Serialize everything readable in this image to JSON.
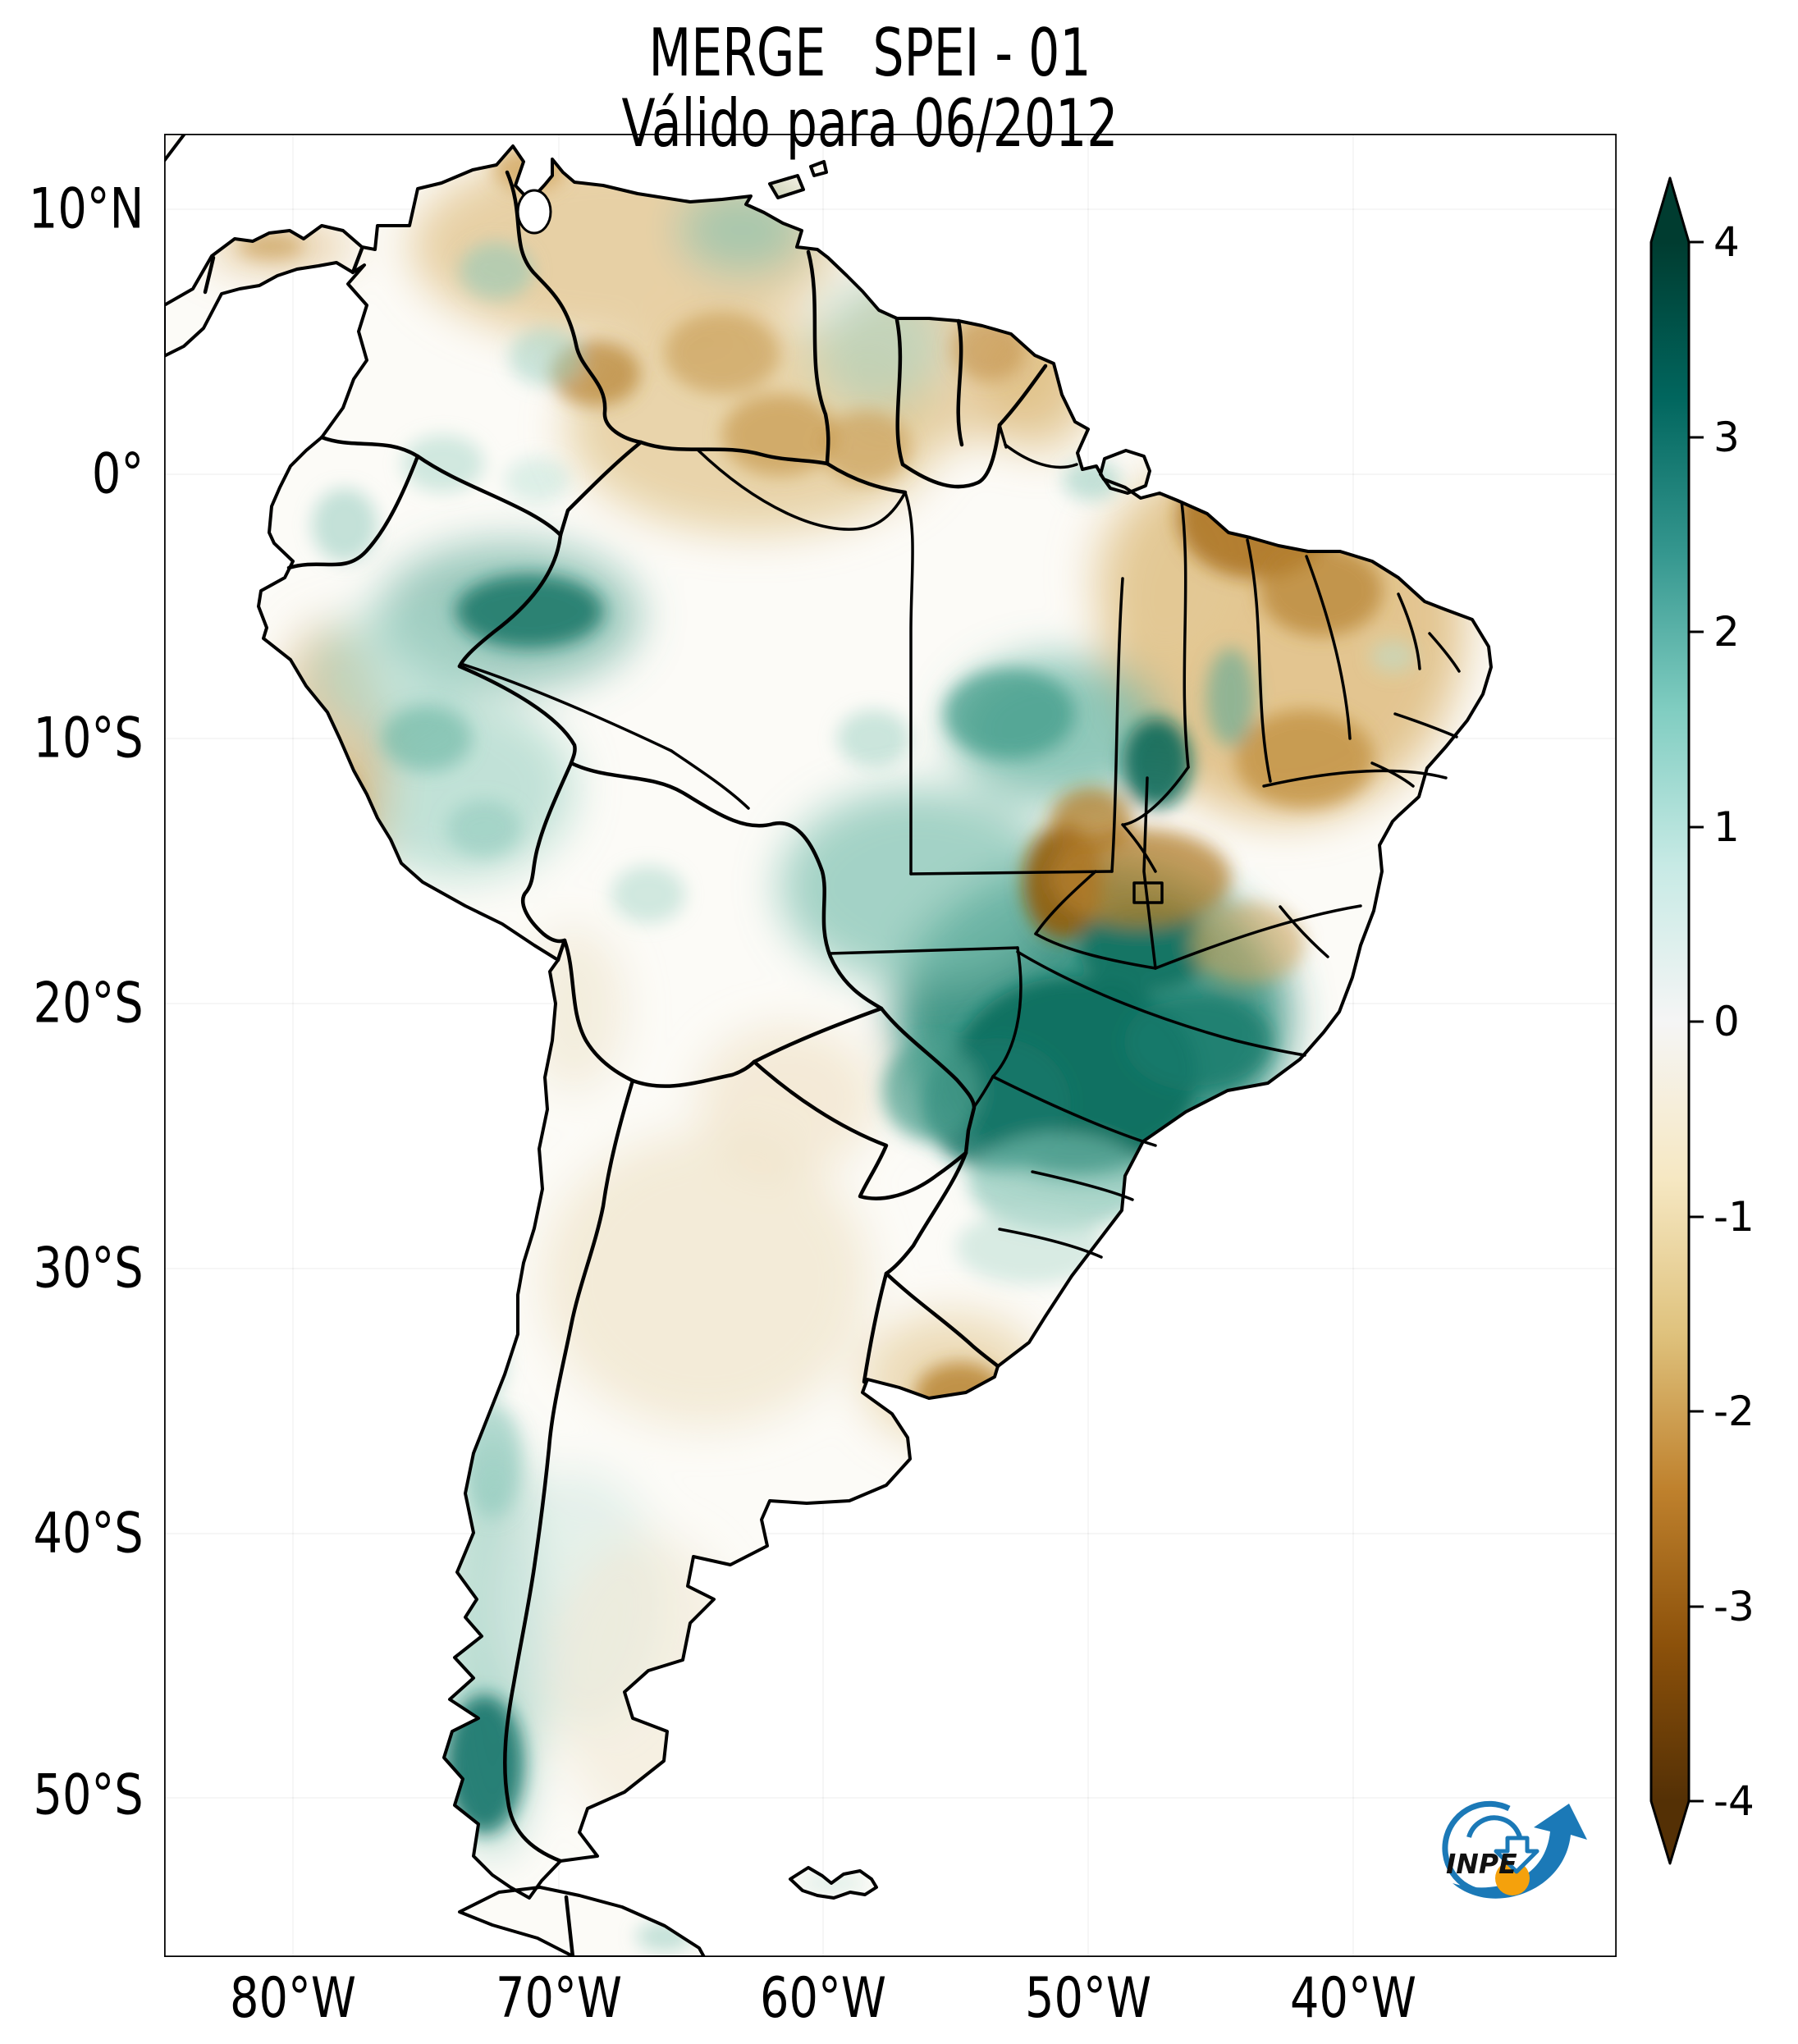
{
  "title": {
    "line1": "MERGE   SPEI - 01",
    "line2": "Válido para 06/2012"
  },
  "axes": {
    "y": [
      {
        "label": "10°N"
      },
      {
        "label": "0°"
      },
      {
        "label": "10°S"
      },
      {
        "label": "20°S"
      },
      {
        "label": "30°S"
      },
      {
        "label": "40°S"
      },
      {
        "label": "50°S"
      }
    ],
    "x": [
      {
        "label": "80°W"
      },
      {
        "label": "70°W"
      },
      {
        "label": "60°W"
      },
      {
        "label": "50°W"
      },
      {
        "label": "40°W"
      }
    ]
  },
  "colorbar": {
    "labels": [
      "4",
      "3",
      "2",
      "1",
      "0",
      "-1",
      "-2",
      "-3",
      "-4"
    ],
    "stops": [
      "#003c30",
      "#01665e",
      "#35978f",
      "#80cdc1",
      "#c7eae5",
      "#f5f5f5",
      "#f6e8c3",
      "#dfc27d",
      "#bf812d",
      "#8c510a",
      "#543005"
    ],
    "extend_max_color": "#003c30",
    "extend_min_color": "#543005"
  },
  "logo": {
    "text": "INPE",
    "blue": "#1b79b7",
    "orange": "#f5a10c"
  },
  "chart_data": {
    "type": "heatmap",
    "title": "MERGE   SPEI - 01",
    "subtitle": "Válido para 06/2012",
    "product": "MERGE",
    "valid_for": "06/2012",
    "x_axis": {
      "ticks": [
        "80°W",
        "70°W",
        "60°W",
        "50°W",
        "40°W"
      ]
    },
    "y_axis": {
      "ticks": [
        "10°N",
        "0°",
        "10°S",
        "20°S",
        "30°S",
        "40°S",
        "50°S"
      ]
    },
    "colorbar": {
      "range": [
        -4,
        4
      ],
      "ticks": [
        4,
        3,
        2,
        1,
        0,
        -1,
        -2,
        -3,
        -4
      ],
      "colormap": "BrBG (brown = dry, white = neutral, teal = wet)",
      "extend": "both"
    },
    "regions": [
      {
        "area": "Southeast Brazil (São Paulo / Paraná / Mato Grosso do Sul)",
        "spei": 3.5
      },
      {
        "area": "Central Pará",
        "spei": 2.5
      },
      {
        "area": "Acre / western Amazon near Peru border",
        "spei": 2.5
      },
      {
        "area": "Patagonian Andes (~45-50°S)",
        "spei": 3
      },
      {
        "area": "Eastern Paraguay / Misiones",
        "spei": 2
      },
      {
        "area": "Minas Gerais - Goiás (west of Brasília)",
        "spei": -3
      },
      {
        "area": "Northeast Brazil (Bahia / Pernambuco / Piauí / Ceará)",
        "spei": -2
      },
      {
        "area": "Northern Venezuela and Colombian-Venezuelan llanos",
        "spei": -1.5
      },
      {
        "area": "Central Amazon",
        "spei": -1
      },
      {
        "area": "Peruvian coastal strip",
        "spei": -1.5
      },
      {
        "area": "Rio Grande do Sul (local spot)",
        "spei": -2
      },
      {
        "area": "Central Argentina",
        "spei": 0
      }
    ]
  }
}
